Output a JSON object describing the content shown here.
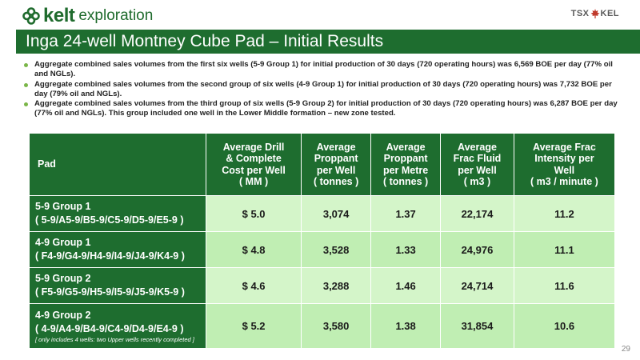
{
  "header": {
    "logo_text": "kelt",
    "logo_subtext": "exploration",
    "exchange_left": "TSX",
    "exchange_right": "KEL",
    "title": "Inga 24-well Montney Cube Pad – Initial Results"
  },
  "bullets": [
    "Aggregate combined sales volumes from the first six wells (5-9 Group 1) for initial production of 30 days (720 operating hours) was 6,569 BOE per day (77% oil and NGLs).",
    "Aggregate combined sales volumes from the second group of six wells (4-9 Group 1) for initial production of 30 days (720 operating hours) was 7,732 BOE per day (79% oil and NGLs).",
    "Aggregate combined sales volumes from the third group of six wells (5-9 Group 2) for initial production of 30 days (720 operating hours) was 6,287 BOE per day (77% oil and NGLs). This group included one well in the Lower Middle formation – new zone tested."
  ],
  "table": {
    "headers": {
      "pad": "Pad",
      "cost": [
        "Average Drill",
        "& Complete",
        "Cost per Well",
        "( MM )"
      ],
      "proppant_well": [
        "Average",
        "Proppant",
        "per Well",
        "( tonnes )"
      ],
      "proppant_metre": [
        "Average",
        "Proppant",
        "per Metre",
        "( tonnes )"
      ],
      "frac_fluid": [
        "Average",
        "Frac Fluid",
        "per Well",
        "( m3 )"
      ],
      "frac_intensity": [
        "Average Frac",
        "Intensity per",
        "Well",
        "( m3 / minute )"
      ]
    },
    "rows": [
      {
        "name": "5-9 Group 1",
        "wells": "( 5-9/A5-9/B5-9/C5-9/D5-9/E5-9 )",
        "cost": "$ 5.0",
        "proppant_well": "3,074",
        "proppant_metre": "1.37",
        "frac_fluid": "22,174",
        "frac_intensity": "11.2"
      },
      {
        "name": "4-9 Group 1",
        "wells": "( F4-9/G4-9/H4-9/I4-9/J4-9/K4-9 )",
        "cost": "$ 4.8",
        "proppant_well": "3,528",
        "proppant_metre": "1.33",
        "frac_fluid": "24,976",
        "frac_intensity": "11.1"
      },
      {
        "name": "5-9 Group 2",
        "wells": "( F5-9/G5-9/H5-9/I5-9/J5-9/K5-9 )",
        "cost": "$ 4.6",
        "proppant_well": "3,288",
        "proppant_metre": "1.46",
        "frac_fluid": "24,714",
        "frac_intensity": "11.6"
      },
      {
        "name": "4-9 Group 2",
        "wells": "( 4-9/A4-9/B4-9/C4-9/D4-9/E4-9 )",
        "note": "[ only includes 4 wells: two Upper wells recently completed ]",
        "cost": "$ 5.2",
        "proppant_well": "3,580",
        "proppant_metre": "1.38",
        "frac_fluid": "31,854",
        "frac_intensity": "10.6"
      }
    ]
  },
  "page_number": "29",
  "colors": {
    "brand_green": "#1e6d2f",
    "bullet_green": "#7ab648",
    "row_light": "#d4f5c9",
    "row_mid": "#c0eeb3"
  },
  "icons": {
    "logo_mark": "celtic-knot-icon",
    "exchange_mark": "maple-leaf-icon"
  }
}
